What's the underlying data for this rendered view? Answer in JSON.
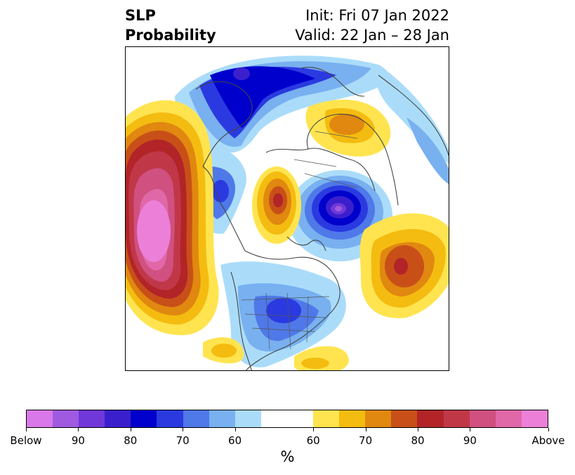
{
  "title": {
    "left_line1": "SLP",
    "left_line2": "Probability",
    "right_line1": "Init: Fri 07 Jan 2022",
    "right_line2": "Valid: 22 Jan – 28 Jan"
  },
  "colorbar": {
    "below_colors": [
      "#d978e8",
      "#a05ae0",
      "#7038d8",
      "#3a20cc",
      "#0000cc",
      "#2a3ae0",
      "#4f78e8",
      "#78b0f0",
      "#aadcfa"
    ],
    "neutral_color": "#ffffff",
    "above_colors": [
      "#ffe450",
      "#f4bc10",
      "#e08810",
      "#c85018",
      "#b22428",
      "#c03848",
      "#d05080",
      "#e068a8",
      "#ec80d8"
    ],
    "tick_labels": [
      "Below",
      "90",
      "80",
      "70",
      "60",
      "60",
      "70",
      "80",
      "90",
      "Above"
    ],
    "unit": "%"
  }
}
